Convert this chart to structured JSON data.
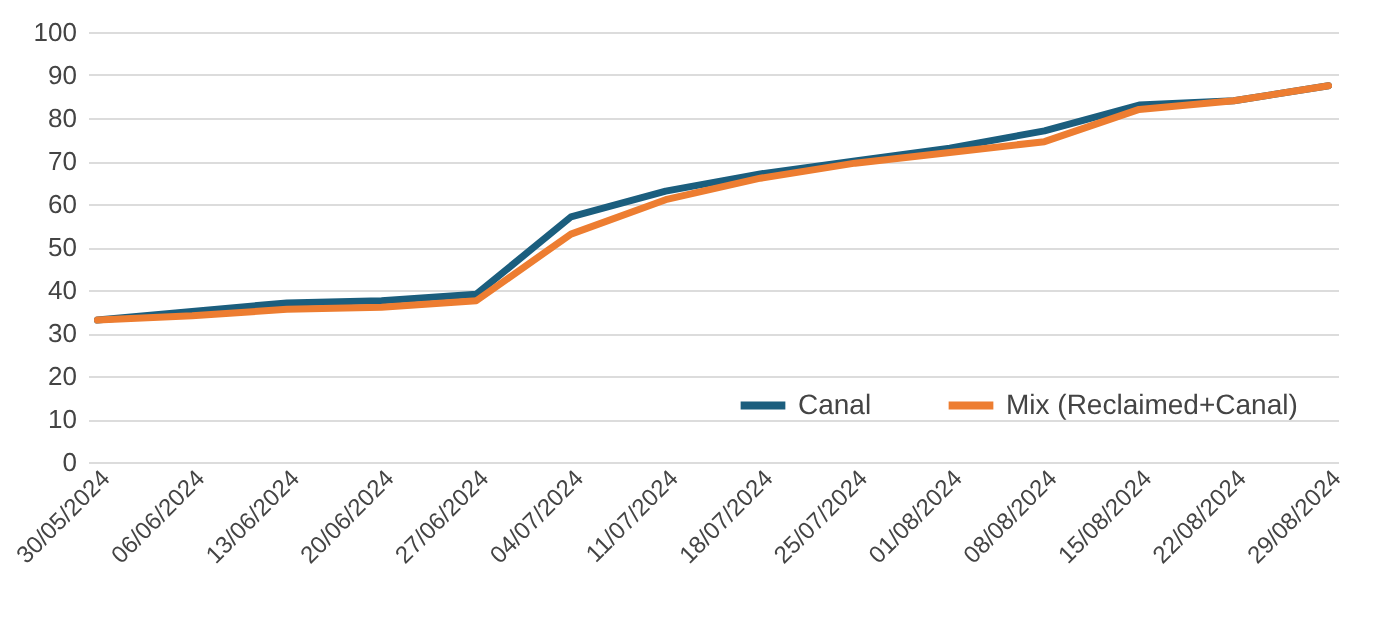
{
  "chart_data": {
    "type": "line",
    "categories": [
      "30/05/2024",
      "06/06/2024",
      "13/06/2024",
      "20/06/2024",
      "27/06/2024",
      "04/07/2024",
      "11/07/2024",
      "18/07/2024",
      "25/07/2024",
      "01/08/2024",
      "08/08/2024",
      "15/08/2024",
      "22/08/2024",
      "29/08/2024"
    ],
    "series": [
      {
        "name": "Canal",
        "color": "#1b5e7e",
        "values": [
          33,
          35,
          37,
          37.5,
          39,
          57,
          63,
          67,
          70,
          73,
          77,
          83,
          84,
          87.5
        ]
      },
      {
        "name": "Mix (Reclaimed+Canal)",
        "color": "#ed7d31",
        "values": [
          33,
          34,
          35.5,
          36,
          37.5,
          53,
          61,
          66,
          69.5,
          72,
          74.5,
          82,
          84,
          87.5
        ]
      }
    ],
    "ylim": [
      0,
      100
    ],
    "yticks": [
      0,
      10,
      20,
      30,
      40,
      50,
      60,
      70,
      80,
      90,
      100
    ],
    "grid": "y",
    "legend": "bottom right",
    "line_style": "solid",
    "marker": "none"
  }
}
